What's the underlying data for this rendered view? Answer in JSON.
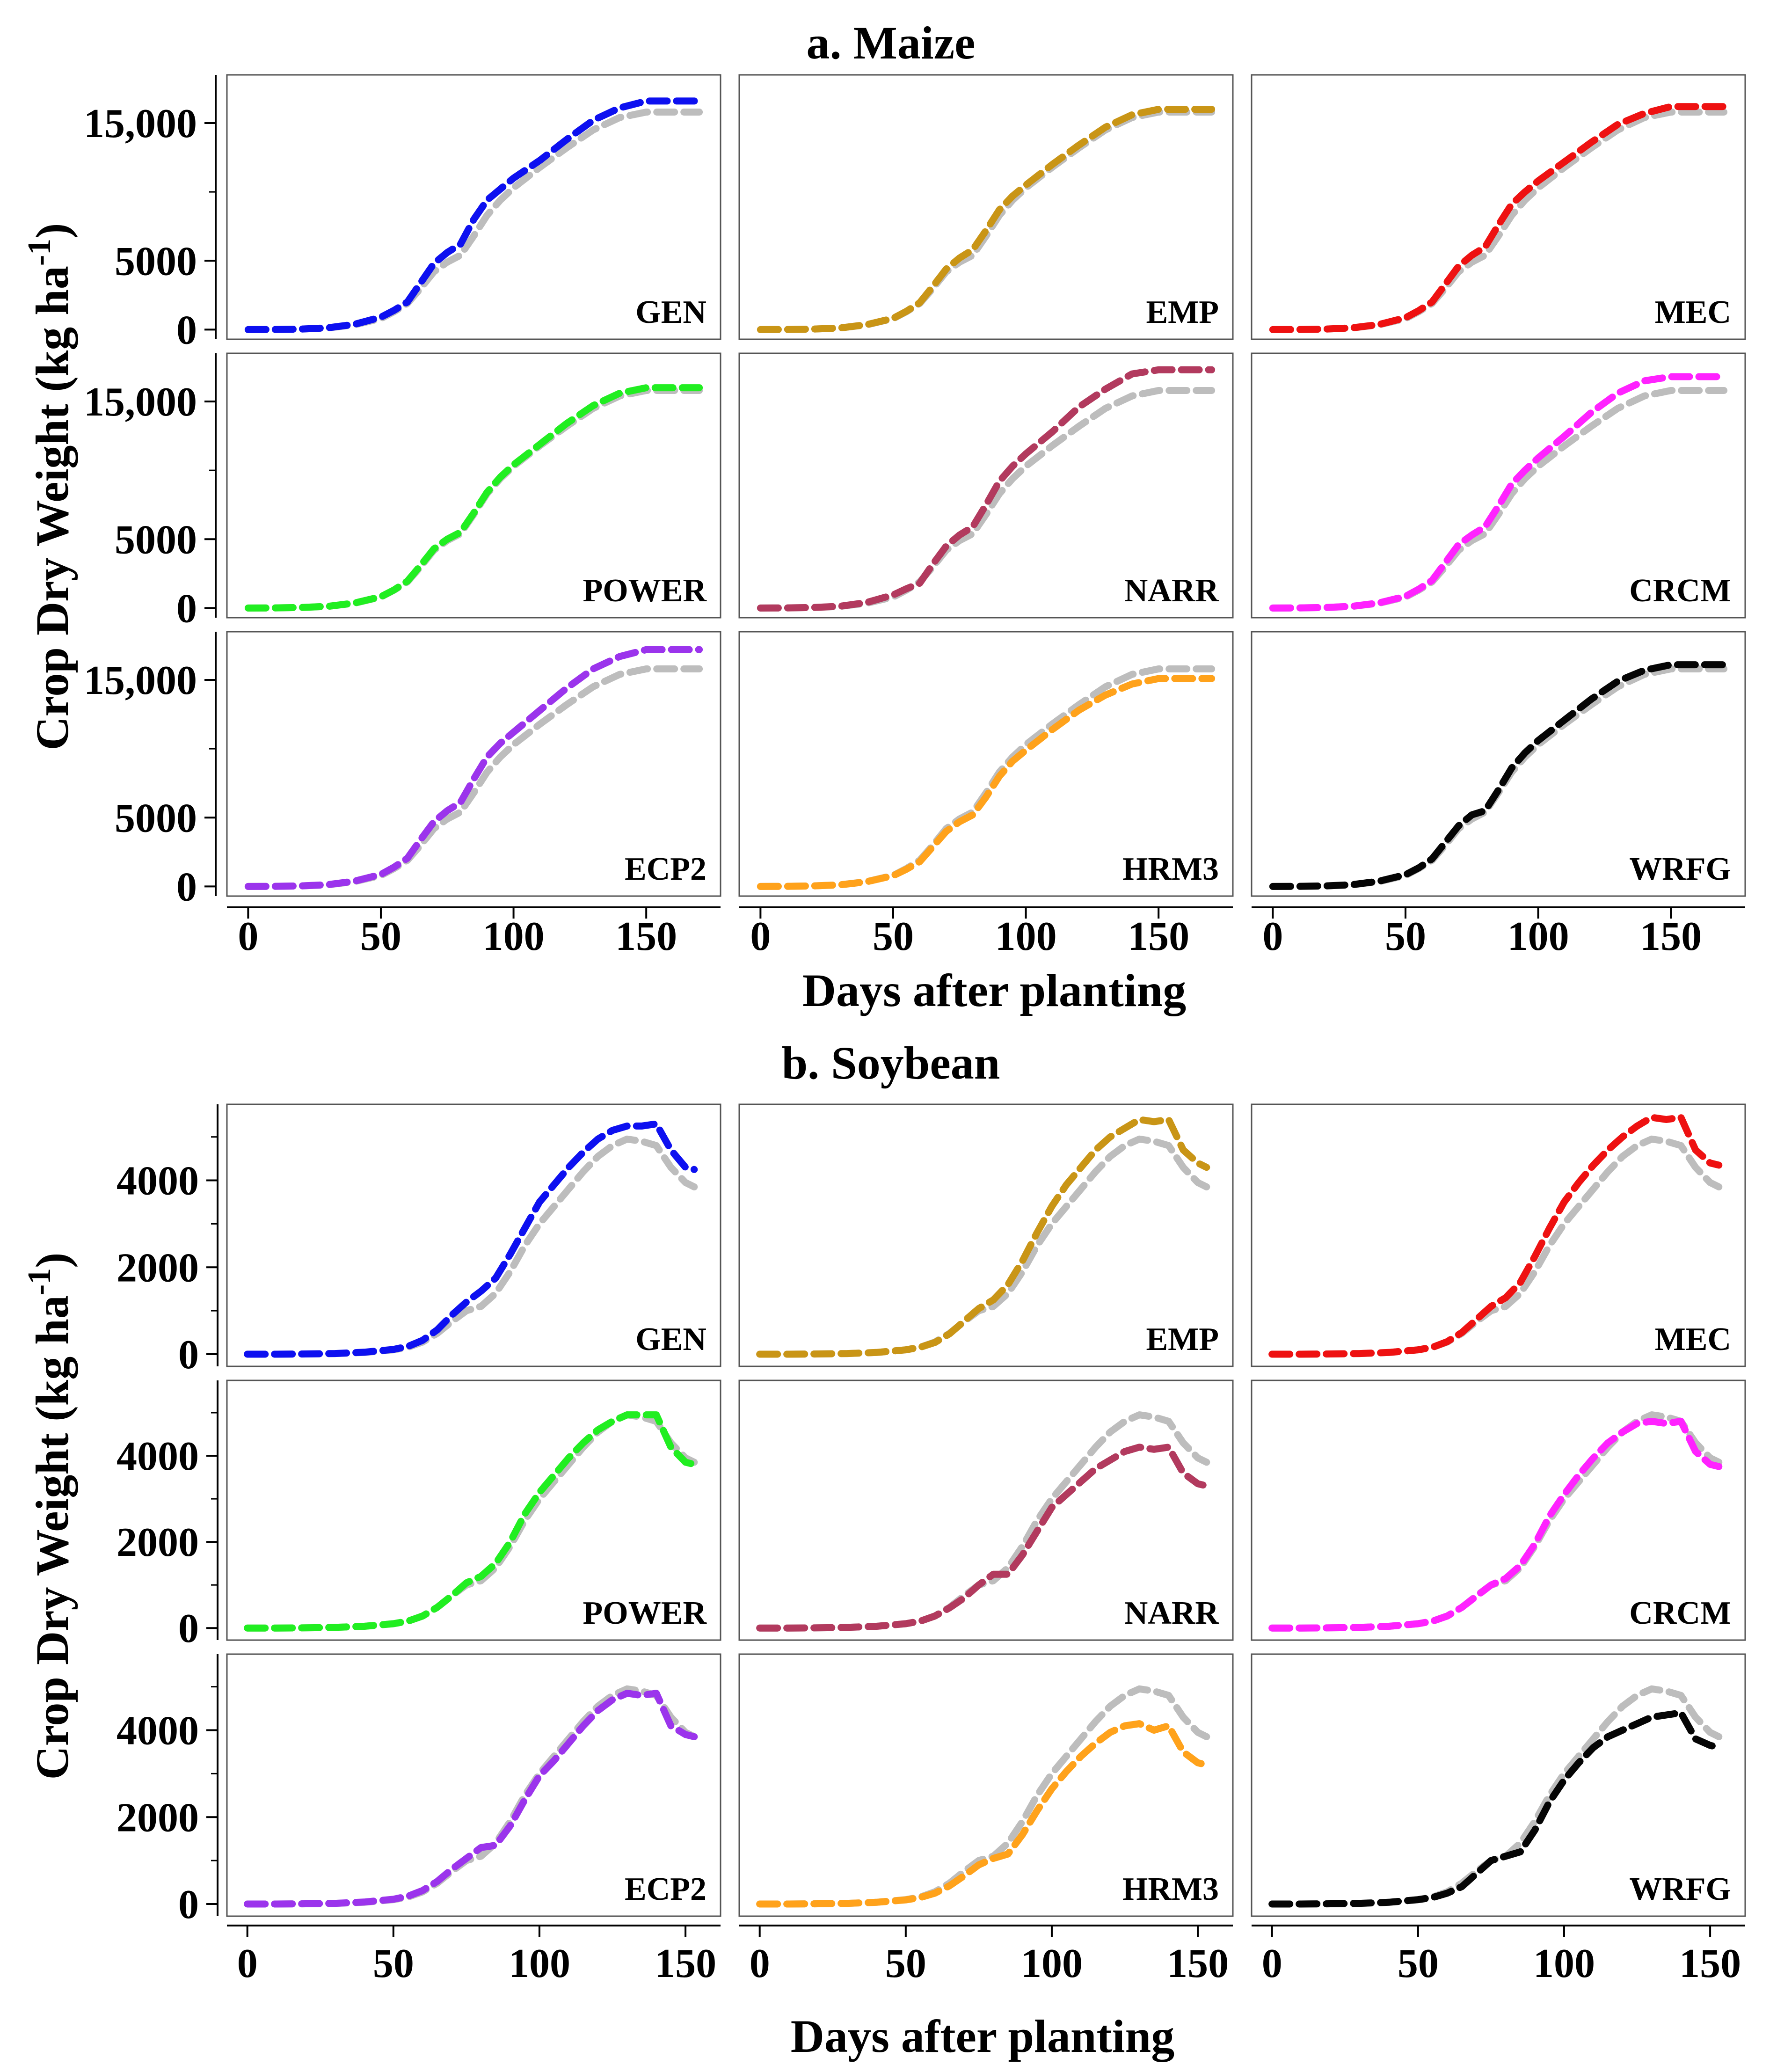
{
  "sections": [
    {
      "title": "a. Maize",
      "ylabel": "Crop Dry Weight (kg ha",
      "ylabel_sup": "-1",
      "ylabel_close": ")",
      "xlabel": "Days after planting",
      "yticks": [
        {
          "value": 0,
          "label": "0"
        },
        {
          "value": 5000,
          "label": "5000"
        },
        {
          "value": 15000,
          "label": "15,000"
        }
      ],
      "yminor": [
        10000
      ],
      "xticks": [
        {
          "value": 0,
          "label": "0"
        },
        {
          "value": 50,
          "label": "50"
        },
        {
          "value": 100,
          "label": "100"
        },
        {
          "value": 150,
          "label": "150"
        }
      ],
      "xlim": [
        -8,
        178
      ],
      "ylim": [
        -700,
        18500
      ]
    },
    {
      "title": "b. Soybean",
      "ylabel": "Crop Dry Weight (kg ha",
      "ylabel_sup": "-1",
      "ylabel_close": ")",
      "xlabel": "Days after planting",
      "yticks": [
        {
          "value": 0,
          "label": "0"
        },
        {
          "value": 2000,
          "label": "2000"
        },
        {
          "value": 4000,
          "label": "4000"
        }
      ],
      "yminor": [
        1000,
        3000,
        5000
      ],
      "xticks": [
        {
          "value": 0,
          "label": "0"
        },
        {
          "value": 50,
          "label": "50"
        },
        {
          "value": 100,
          "label": "100"
        },
        {
          "value": 150,
          "label": "150"
        }
      ],
      "xlim": [
        -7,
        162
      ],
      "ylim": [
        -280,
        5750
      ]
    }
  ],
  "chart_data": [
    {
      "type": "line",
      "title": "a. Maize",
      "xlabel": "Days after planting",
      "ylabel": "Crop Dry Weight (kg ha-1)",
      "x": [
        0,
        10,
        20,
        30,
        40,
        50,
        55,
        60,
        65,
        70,
        75,
        80,
        85,
        90,
        95,
        100,
        110,
        120,
        130,
        140,
        150,
        160,
        170
      ],
      "reference": {
        "name": "reference (grey)",
        "color": "#bdbdbd",
        "values": [
          0,
          10,
          40,
          120,
          350,
          800,
          1300,
          1900,
          3000,
          4200,
          4900,
          5400,
          6800,
          8300,
          9400,
          10300,
          11800,
          13200,
          14500,
          15400,
          15800,
          15800,
          15800
        ]
      },
      "panels": [
        {
          "name": "GEN",
          "color": "#0d10f0",
          "values": [
            0,
            10,
            40,
            130,
            380,
            900,
            1400,
            2000,
            3400,
            4800,
            5600,
            6200,
            8000,
            9400,
            10200,
            11000,
            12300,
            13800,
            15200,
            16100,
            16600,
            16600,
            16600
          ]
        },
        {
          "name": "EMP",
          "color": "#c99516",
          "values": [
            0,
            10,
            40,
            120,
            360,
            820,
            1330,
            1950,
            3150,
            4400,
            5200,
            5800,
            7200,
            8700,
            9700,
            10500,
            12000,
            13400,
            14700,
            15600,
            16000,
            16000,
            16000
          ]
        },
        {
          "name": "MEC",
          "color": "#ee1111",
          "values": [
            0,
            10,
            40,
            130,
            370,
            860,
            1380,
            2000,
            3300,
            4600,
            5400,
            6000,
            7600,
            9100,
            10000,
            10800,
            12200,
            13600,
            14900,
            15700,
            16200,
            16200,
            16200
          ]
        },
        {
          "name": "POWER",
          "color": "#21ee21",
          "values": [
            0,
            10,
            40,
            120,
            360,
            820,
            1320,
            1950,
            3100,
            4300,
            5000,
            5500,
            6900,
            8400,
            9500,
            10400,
            11900,
            13400,
            14700,
            15600,
            16000,
            16000,
            16000
          ]
        },
        {
          "name": "NARR",
          "color": "#b23a5e",
          "values": [
            0,
            10,
            40,
            130,
            400,
            950,
            1400,
            1800,
            3200,
            4500,
            5300,
            5900,
            7500,
            9200,
            10300,
            11200,
            12800,
            14600,
            15900,
            17000,
            17300,
            17300,
            17300
          ]
        },
        {
          "name": "CRCM",
          "color": "#ff22ff",
          "values": [
            0,
            10,
            40,
            125,
            370,
            850,
            1370,
            2000,
            3300,
            4600,
            5300,
            5900,
            7400,
            9000,
            10000,
            10900,
            12500,
            14200,
            15600,
            16500,
            16800,
            16800,
            16800
          ]
        },
        {
          "name": "ECP2",
          "color": "#9b34ec",
          "values": [
            0,
            10,
            40,
            130,
            380,
            870,
            1400,
            2050,
            3400,
            4700,
            5500,
            6100,
            7800,
            9400,
            10400,
            11200,
            12800,
            14400,
            15800,
            16700,
            17200,
            17200,
            17200
          ]
        },
        {
          "name": "HRM3",
          "color": "#ffa21b",
          "values": [
            0,
            10,
            40,
            115,
            340,
            780,
            1250,
            1800,
            2900,
            4000,
            4700,
            5200,
            6500,
            8000,
            9100,
            9900,
            11400,
            12800,
            13900,
            14700,
            15100,
            15100,
            15100
          ]
        },
        {
          "name": "WRFG",
          "color": "#050505",
          "values": [
            0,
            10,
            40,
            130,
            380,
            850,
            1350,
            2000,
            3200,
            4400,
            5200,
            5500,
            7000,
            8600,
            9700,
            10600,
            12100,
            13600,
            14900,
            15700,
            16100,
            16100,
            16100
          ]
        }
      ]
    },
    {
      "type": "line",
      "title": "b. Soybean",
      "xlabel": "Days after planting",
      "ylabel": "Crop Dry Weight (kg ha-1)",
      "x": [
        0,
        10,
        20,
        30,
        40,
        50,
        55,
        60,
        65,
        70,
        75,
        80,
        85,
        90,
        95,
        100,
        105,
        110,
        115,
        120,
        125,
        130,
        135,
        140,
        145,
        150,
        153
      ],
      "reference": {
        "name": "reference (grey)",
        "color": "#bdbdbd",
        "values": [
          0,
          0,
          5,
          15,
          40,
          100,
          160,
          280,
          480,
          750,
          1000,
          1100,
          1400,
          1900,
          2500,
          3000,
          3400,
          3800,
          4200,
          4550,
          4800,
          4950,
          4900,
          4800,
          4300,
          3950,
          3850
        ]
      },
      "panels": [
        {
          "name": "GEN",
          "color": "#0d10f0",
          "values": [
            0,
            0,
            5,
            15,
            45,
            110,
            180,
            320,
            560,
            900,
            1200,
            1450,
            1750,
            2300,
            2900,
            3500,
            3900,
            4300,
            4650,
            4950,
            5150,
            5250,
            5250,
            5300,
            4700,
            4300,
            4250
          ]
        },
        {
          "name": "EMP",
          "color": "#c99516",
          "values": [
            0,
            0,
            5,
            15,
            40,
            100,
            160,
            270,
            470,
            760,
            1050,
            1250,
            1600,
            2150,
            2800,
            3400,
            3900,
            4300,
            4700,
            5000,
            5200,
            5400,
            5350,
            5400,
            4700,
            4400,
            4300
          ]
        },
        {
          "name": "MEC",
          "color": "#ee1111",
          "values": [
            0,
            0,
            5,
            15,
            40,
            100,
            160,
            290,
            500,
            800,
            1100,
            1300,
            1650,
            2250,
            2900,
            3500,
            3950,
            4350,
            4700,
            5000,
            5250,
            5450,
            5400,
            5450,
            4700,
            4400,
            4350
          ]
        },
        {
          "name": "POWER",
          "color": "#21ee21",
          "values": [
            0,
            0,
            5,
            15,
            40,
            100,
            160,
            280,
            480,
            750,
            1050,
            1200,
            1500,
            2000,
            2650,
            3150,
            3550,
            3950,
            4300,
            4600,
            4800,
            4950,
            4950,
            4950,
            4200,
            3850,
            3800
          ]
        },
        {
          "name": "NARR",
          "color": "#b23a5e",
          "values": [
            0,
            0,
            5,
            15,
            40,
            100,
            160,
            280,
            470,
            700,
            1000,
            1250,
            1250,
            1700,
            2250,
            2800,
            3100,
            3400,
            3700,
            3900,
            4100,
            4200,
            4150,
            4200,
            3600,
            3350,
            3300
          ]
        },
        {
          "name": "CRCM",
          "color": "#ff22ff",
          "values": [
            0,
            0,
            5,
            15,
            40,
            100,
            160,
            280,
            480,
            740,
            1000,
            1150,
            1450,
            1950,
            2600,
            3100,
            3550,
            3950,
            4300,
            4550,
            4750,
            4800,
            4750,
            4800,
            4100,
            3800,
            3750
          ]
        },
        {
          "name": "ECP2",
          "color": "#9b34ec",
          "values": [
            0,
            0,
            5,
            15,
            45,
            110,
            180,
            310,
            520,
            800,
            1050,
            1300,
            1350,
            1800,
            2400,
            2950,
            3300,
            3700,
            4100,
            4450,
            4700,
            4850,
            4800,
            4850,
            4100,
            3900,
            3850
          ]
        },
        {
          "name": "HRM3",
          "color": "#ffa21b",
          "values": [
            0,
            0,
            5,
            15,
            40,
            95,
            150,
            250,
            420,
            650,
            900,
            1050,
            1150,
            1600,
            2150,
            2650,
            3050,
            3400,
            3700,
            3950,
            4100,
            4150,
            4000,
            4100,
            3500,
            3250,
            3200
          ]
        },
        {
          "name": "WRFG",
          "color": "#050505",
          "values": [
            0,
            0,
            5,
            15,
            40,
            100,
            150,
            250,
            400,
            700,
            1000,
            1100,
            1200,
            1700,
            2350,
            2850,
            3250,
            3600,
            3850,
            4000,
            4150,
            4300,
            4350,
            4400,
            3800,
            3650,
            3600
          ]
        }
      ]
    }
  ]
}
